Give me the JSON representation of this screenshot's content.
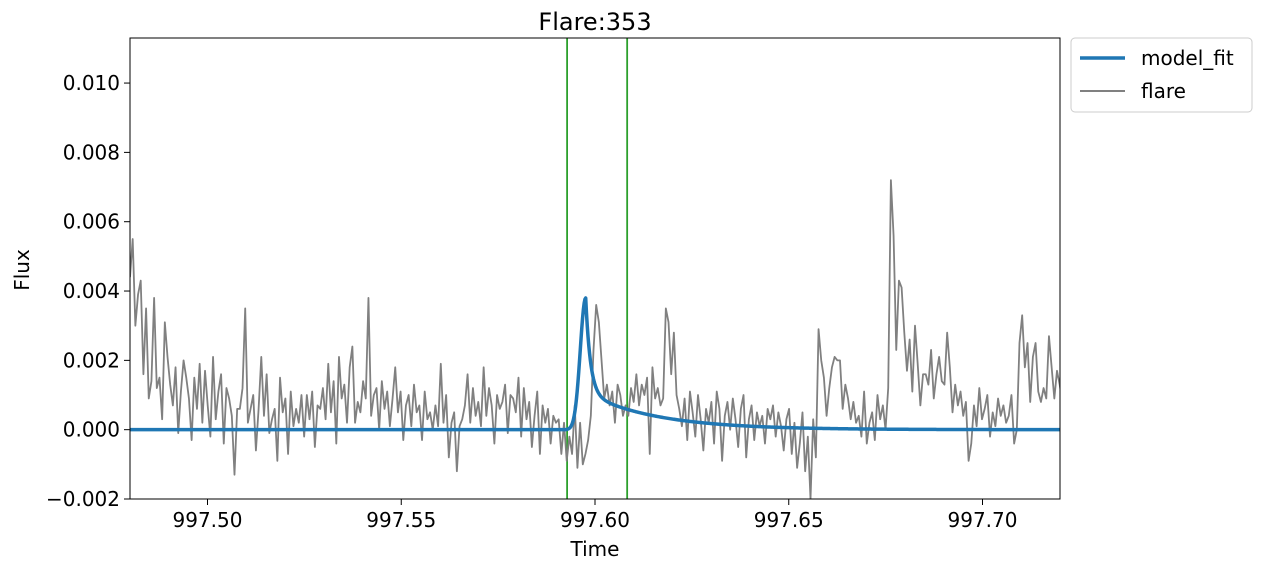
{
  "chart_data": {
    "type": "line",
    "title": "Flare:353",
    "xlabel": "Time",
    "ylabel": "Flux",
    "xlim": [
      997.48,
      997.72
    ],
    "ylim": [
      -0.002,
      0.0113
    ],
    "xticks": [
      997.5,
      997.55,
      997.6,
      997.65,
      997.7
    ],
    "xtick_labels": [
      "997.50",
      "997.55",
      "997.60",
      "997.65",
      "997.70"
    ],
    "yticks": [
      -0.002,
      0.0,
      0.002,
      0.004,
      0.006,
      0.008,
      0.01
    ],
    "ytick_labels": [
      "−0.002",
      "0.000",
      "0.002",
      "0.004",
      "0.006",
      "0.008",
      "0.010"
    ],
    "grid": false,
    "legend_position": "outside-top-right",
    "vlines": {
      "x": [
        997.5928,
        997.6083
      ],
      "color": "#2ca02c"
    },
    "series": [
      {
        "name": "model_fit",
        "color": "#1f77b4",
        "style": "thick-line",
        "tpeak": 997.5976,
        "t_start": 997.5927,
        "peak": 0.0038,
        "baseline": 0.0,
        "rise_width": 0.0014,
        "decay_fast_tau": 0.0012,
        "decay_slow_tau": 0.018,
        "fast_fraction": 0.72
      },
      {
        "name": "flare",
        "color": "#808080",
        "style": "thin-line",
        "x_start": 997.48,
        "x_end": 997.7213,
        "y": [
          0.0044,
          0.0055,
          0.003,
          0.0039,
          0.0043,
          0.0016,
          0.0035,
          0.0009,
          0.0014,
          0.0038,
          0.0012,
          0.0015,
          0.0003,
          0.0031,
          0.0021,
          0.0013,
          0.0007,
          0.0018,
          -0.0001,
          0.0011,
          0.002,
          0.0015,
          0.0009,
          -0.0003,
          0.0015,
          0.0006,
          0.0019,
          0.0002,
          0.0017,
          0.0007,
          -0.0002,
          0.0021,
          0.0003,
          0.0011,
          0.0016,
          -0.0004,
          0.0012,
          0.0009,
          0.0004,
          -0.0013,
          0.0006,
          0.0006,
          0.0012,
          0.0035,
          0.0002,
          0.0006,
          0.001,
          -0.0006,
          0.0006,
          0.0021,
          0.0004,
          0.0016,
          -0.0001,
          0.0003,
          0.0006,
          -0.0009,
          0.0015,
          0.0005,
          0.0009,
          -0.0007,
          0.0011,
          0.0001,
          0.0006,
          0.0002,
          0.001,
          -0.0002,
          0.001,
          0.0003,
          0.0011,
          -0.0005,
          0.0007,
          0.0006,
          0.0012,
          0.0003,
          0.0019,
          0.0005,
          0.0014,
          -0.0004,
          0.0021,
          0.0009,
          0.0013,
          0.0002,
          0.0018,
          0.0024,
          0.0002,
          0.0008,
          0.0005,
          0.0014,
          0.0009,
          0.0038,
          0.0004,
          0.001,
          0.0012,
          0.0,
          0.0014,
          0.0006,
          0.0011,
          0.0001,
          0.0009,
          0.0018,
          0.0005,
          0.0011,
          -0.0003,
          0.0007,
          0.001,
          0.0001,
          0.0013,
          0.0005,
          0.0007,
          -0.0003,
          0.0011,
          0.0003,
          0.0005,
          0.0,
          0.0007,
          0.0001,
          0.0019,
          0.0002,
          0.001,
          -0.0008,
          0.0002,
          0.0005,
          -0.0012,
          0.0001,
          0.0003,
          0.0007,
          0.0016,
          0.0002,
          0.0012,
          0.0004,
          0.0008,
          0.0001,
          0.0018,
          0.0004,
          0.0012,
          0.0007,
          -0.0004,
          0.001,
          0.0006,
          0.0008,
          0.0013,
          -0.0001,
          0.001,
          0.0009,
          0.0005,
          0.0015,
          -0.0002,
          0.0012,
          0.0003,
          0.0008,
          -0.0005,
          0.0004,
          0.0011,
          -0.0007,
          0.0007,
          0.0002,
          0.0006,
          -0.0004,
          0.0004,
          0.0002,
          0.0003,
          -0.0007,
          0.0002,
          -0.0009,
          -0.0002,
          -0.0007,
          0.0007,
          -0.0011,
          0.0002,
          -0.001,
          -0.0007,
          -0.0003,
          0.0004,
          0.0023,
          0.0036,
          0.0031,
          0.002,
          0.0009,
          0.0013,
          0.0007,
          0.0011,
          0.0002,
          0.0013,
          0.001,
          0.0004,
          0.0007,
          0.0004,
          0.0012,
          0.0008,
          0.0016,
          0.0007,
          0.0013,
          0.001,
          0.0015,
          -0.0007,
          0.0018,
          0.0009,
          0.0012,
          0.0007,
          0.0009,
          0.0035,
          0.0031,
          0.0016,
          0.0028,
          0.001,
          0.0006,
          0.0001,
          0.0009,
          -0.0003,
          0.0011,
          0.0005,
          -0.0002,
          0.001,
          0.0003,
          -0.0006,
          0.0006,
          0.0002,
          0.0008,
          -0.0004,
          0.0011,
          0.0006,
          -0.0009,
          0.0004,
          0.0008,
          0.0,
          0.0009,
          0.0003,
          -0.0005,
          0.0006,
          0.001,
          -0.0008,
          0.0003,
          0.0007,
          -0.0003,
          0.0005,
          0.0001,
          0.0004,
          -0.0004,
          0.0006,
          0.0003,
          0.0007,
          -0.0002,
          0.0005,
          0.0001,
          -0.0006,
          0.0003,
          0.0006,
          -0.0007,
          0.0002,
          -0.0011,
          -0.0004,
          0.0005,
          -0.0012,
          -0.0002,
          -0.002,
          0.0003,
          -0.0008,
          0.0029,
          0.002,
          0.0015,
          0.0004,
          0.0012,
          0.0018,
          0.0021,
          0.002,
          0.002,
          0.0006,
          0.0013,
          0.0009,
          0.0003,
          0.0008,
          0.0002,
          0.0004,
          -0.0002,
          0.0011,
          -0.0004,
          0.0002,
          0.0005,
          -0.0003,
          0.001,
          0.0003,
          0.0007,
          0.0,
          0.0012,
          0.0072,
          0.0056,
          0.0023,
          0.0043,
          0.0041,
          0.0028,
          0.0017,
          0.0026,
          0.0011,
          0.003,
          0.0019,
          0.0007,
          0.0016,
          0.0016,
          0.0013,
          0.0023,
          0.0009,
          0.0016,
          0.0021,
          0.0014,
          0.0013,
          0.0028,
          0.0018,
          0.0005,
          0.0013,
          0.0007,
          0.0011,
          0.0004,
          0.0008,
          -0.0009,
          -0.0004,
          0.0007,
          0.0001,
          0.0012,
          0.0003,
          0.0006,
          0.001,
          -0.0002,
          0.0005,
          0.0001,
          0.0009,
          0.0004,
          0.0007,
          0.0002,
          0.0004,
          0.001,
          -0.0004,
          0.0,
          0.0025,
          0.0033,
          0.0018,
          0.0025,
          0.0008,
          0.0021,
          0.0025,
          0.0011,
          0.0008,
          0.0012,
          0.0009,
          0.0027,
          0.0018,
          0.0009,
          0.0017,
          0.0013,
          0.0008,
          0.0015
        ]
      }
    ]
  }
}
